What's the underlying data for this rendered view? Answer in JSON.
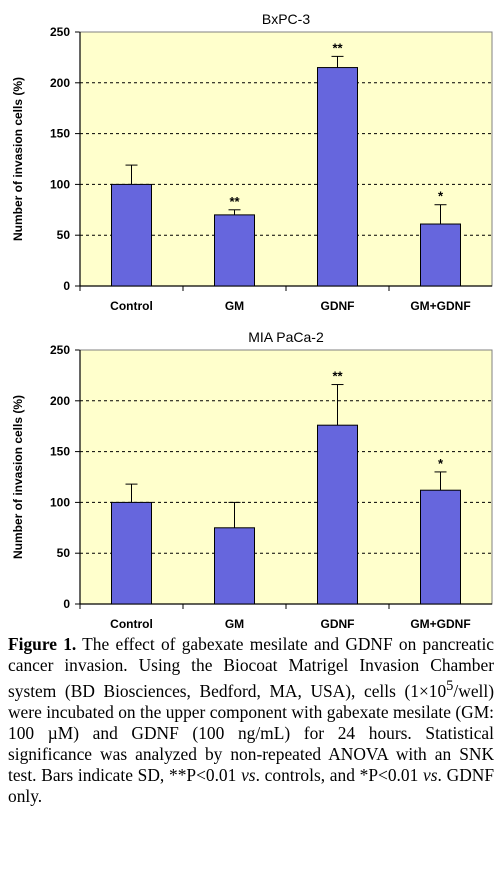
{
  "chart_data": [
    {
      "type": "bar",
      "title": "BxPC-3",
      "ylabel": "Number of invasion cells (%)",
      "xlabel": "",
      "categories": [
        "Control",
        "GM",
        "GDNF",
        "GM+GDNF"
      ],
      "values": [
        100,
        70,
        215,
        61
      ],
      "errors": [
        19,
        5,
        11,
        19
      ],
      "significance": [
        "",
        "**",
        "**",
        "*"
      ],
      "ylim": [
        0,
        250
      ],
      "yticks": [
        "0",
        "50",
        "100",
        "150",
        "200",
        "250"
      ],
      "grid": "dashed horizontal",
      "bar_color": "#6666dd",
      "background_color": "#ffffcc"
    },
    {
      "type": "bar",
      "title": "MIA PaCa-2",
      "ylabel": "Number of invasion cells (%)",
      "xlabel": "",
      "categories": [
        "Control",
        "GM",
        "GDNF",
        "GM+GDNF"
      ],
      "values": [
        100,
        75,
        176,
        112
      ],
      "errors": [
        18,
        25,
        40,
        18
      ],
      "significance": [
        "",
        "",
        "**",
        "*"
      ],
      "ylim": [
        0,
        250
      ],
      "yticks": [
        "0",
        "50",
        "100",
        "150",
        "200",
        "250"
      ],
      "grid": "dashed horizontal",
      "bar_color": "#6666dd",
      "background_color": "#ffffcc"
    }
  ],
  "caption": {
    "label": "Figure 1.",
    "part1": " The effect of gabexate mesilate and GDNF on pancreatic cancer invasion. Using the Biocoat Matrigel Invasion Chamber system (BD Biosciences, Bedford, MA, USA), cells (1×10",
    "sup": "5",
    "part2": "/well) were incubated on the upper component with gabexate mesilate (GM: 100 µM) and GDNF (100 ng/mL) for 24 hours. Statistical significance was analyzed by non-repeated ANOVA with an SNK test. Bars indicate SD, **P<0.01 ",
    "vs1": "vs",
    "part3": ". controls, and *P<0.01 ",
    "vs2": "vs",
    "part4": ". GDNF only."
  }
}
